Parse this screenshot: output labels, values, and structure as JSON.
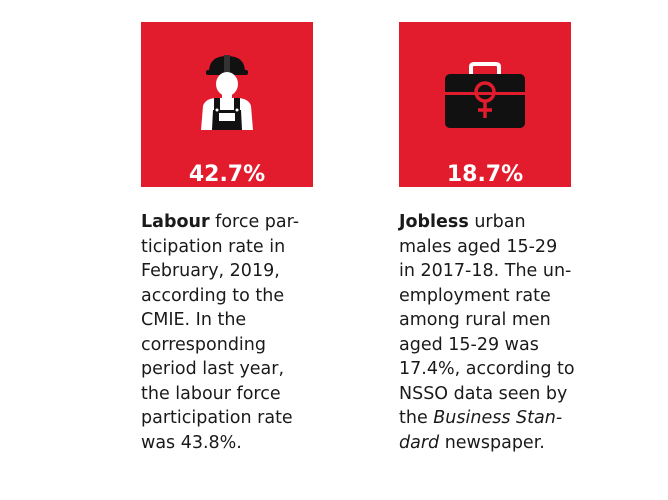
{
  "cards": [
    {
      "stat": "42.7%",
      "icon": "worker-icon",
      "lead": "Labour",
      "lines": [
        " force par-",
        "ticipation rate in",
        "February, 2019,",
        "according to the",
        "CMIE. In the",
        "corresponding",
        "period last year,",
        "the labour force",
        "participation rate",
        "was 43.8%."
      ]
    },
    {
      "stat": "18.7%",
      "icon": "briefcase-female-icon",
      "lead": "Jobless",
      "lines": [
        " urban",
        "males aged 15-29",
        "in 2017-18. The un-",
        "employment rate",
        "among rural men",
        "aged 15-29 was",
        "17.4%, according to",
        "NSSO data seen by",
        "the ",
        "dard",
        " newspaper."
      ],
      "italic_1": "Business Stan-"
    }
  ],
  "colors": {
    "card": "#e21b2d",
    "text": "#1a1a1a",
    "icon_dark": "#111111",
    "icon_light": "#ffffff"
  }
}
